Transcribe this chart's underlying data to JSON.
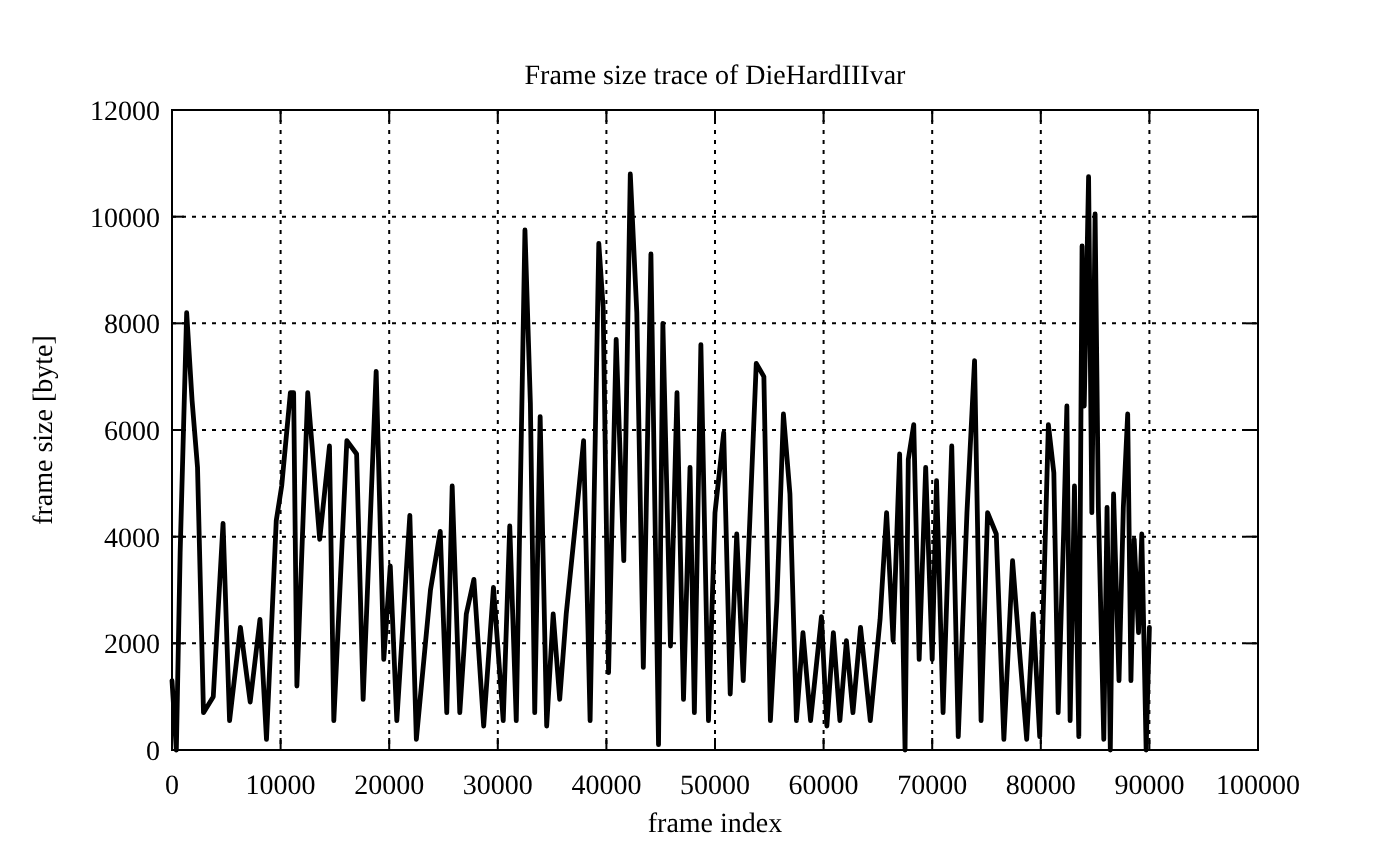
{
  "chart_data": {
    "type": "line",
    "title": "Frame size trace of DieHardIIIvar",
    "xlabel": "frame index",
    "ylabel": "frame size [byte]",
    "xlim": [
      0,
      100000
    ],
    "xticks": [
      0,
      10000,
      20000,
      30000,
      40000,
      50000,
      60000,
      70000,
      80000,
      90000,
      100000
    ],
    "ylim": [
      0,
      12000
    ],
    "yticks": [
      0,
      2000,
      4000,
      6000,
      8000,
      10000,
      12000
    ],
    "grid": true,
    "series": [
      {
        "color": "#000000",
        "x": [
          0,
          400,
          750,
          1350,
          1850,
          2350,
          2900,
          3800,
          4700,
          5300,
          6300,
          7200,
          8100,
          8700,
          9600,
          10100,
          10900,
          11200,
          11500,
          12500,
          13600,
          14500,
          14900,
          16100,
          17000,
          17600,
          18800,
          19500,
          20100,
          20700,
          21900,
          22500,
          23800,
          24700,
          25300,
          25800,
          26500,
          27100,
          27800,
          28700,
          29600,
          30500,
          31100,
          31700,
          32500,
          33000,
          33400,
          33900,
          34500,
          35100,
          35700,
          36300,
          37300,
          37900,
          38500,
          39300,
          39700,
          40200,
          40900,
          41600,
          42200,
          42800,
          43400,
          44100,
          44800,
          45200,
          45900,
          46500,
          47100,
          47700,
          48100,
          48700,
          49400,
          50000,
          50800,
          51400,
          52000,
          52600,
          53800,
          54500,
          55100,
          55700,
          56300,
          56900,
          57500,
          58100,
          58800,
          59800,
          60300,
          60900,
          61500,
          62100,
          62700,
          63400,
          64300,
          65200,
          65800,
          66400,
          67000,
          67500,
          67800,
          68300,
          68800,
          69400,
          70000,
          70400,
          71000,
          71800,
          72400,
          73200,
          73900,
          74500,
          75100,
          75900,
          76600,
          77400,
          78100,
          78700,
          79300,
          79900,
          80700,
          81200,
          81600,
          82100,
          82400,
          82700,
          83100,
          83500,
          83800,
          84000,
          84400,
          84700,
          85000,
          85300,
          85800,
          86100,
          86400,
          86700,
          87200,
          87600,
          88000,
          88300,
          88600,
          89000,
          89300,
          89700,
          90000
        ],
        "values": [
          1300,
          0,
          3700,
          8200,
          6550,
          5300,
          700,
          1000,
          4250,
          550,
          2300,
          900,
          2450,
          200,
          4300,
          4950,
          6700,
          6700,
          1200,
          6700,
          3950,
          5700,
          550,
          5800,
          5550,
          950,
          7100,
          1700,
          3450,
          550,
          4400,
          200,
          3000,
          4100,
          700,
          4950,
          700,
          2550,
          3200,
          450,
          3050,
          550,
          4200,
          550,
          9750,
          6500,
          700,
          6250,
          450,
          2550,
          950,
          2550,
          4550,
          5800,
          550,
          9500,
          8300,
          1450,
          7700,
          3550,
          10800,
          8200,
          1550,
          9300,
          100,
          8000,
          1950,
          6700,
          950,
          5300,
          700,
          7600,
          550,
          4450,
          5950,
          1050,
          4050,
          1300,
          7250,
          7000,
          550,
          2800,
          6300,
          4800,
          550,
          2200,
          550,
          2500,
          450,
          2200,
          550,
          2050,
          700,
          2300,
          550,
          2450,
          4450,
          2050,
          5550,
          0,
          5450,
          6100,
          1700,
          5300,
          1700,
          5050,
          700,
          5700,
          250,
          4450,
          7300,
          550,
          4450,
          4050,
          200,
          3550,
          1700,
          200,
          2550,
          250,
          6100,
          5200,
          700,
          4050,
          6450,
          550,
          4950,
          250,
          9450,
          6450,
          10750,
          4450,
          10050,
          4550,
          200,
          4550,
          0,
          4800,
          1300,
          4550,
          6300,
          1300,
          3950,
          2200,
          4050,
          0,
          2300
        ]
      }
    ]
  }
}
